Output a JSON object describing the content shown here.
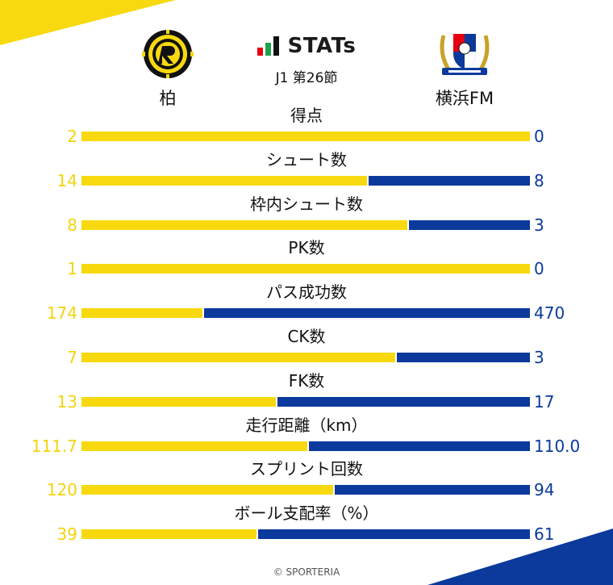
{
  "header": {
    "title": "STATs",
    "subtitle": "J1 第26節",
    "home_team": "柏",
    "away_team": "横浜FM",
    "home_logo_icon": "kashiwa-reysol-crest-icon",
    "away_logo_icon": "yokohama-f-marinos-crest-icon"
  },
  "colors": {
    "home": "#f8d90f",
    "home_text": "#f3d40d",
    "away": "#0b3a9c"
  },
  "chart_data": {
    "type": "bar",
    "orientation": "horizontal-stacked-comparison",
    "categories": [
      "得点",
      "シュート数",
      "枠内シュート数",
      "PK数",
      "パス成功数",
      "CK数",
      "FK数",
      "走行距離（km）",
      "スプリント回数",
      "ボール支配率（%）"
    ],
    "home_labels": [
      "2",
      "14",
      "8",
      "1",
      "174",
      "7",
      "13",
      "111.7",
      "120",
      "39"
    ],
    "away_labels": [
      "0",
      "8",
      "3",
      "0",
      "470",
      "3",
      "17",
      "110.0",
      "94",
      "61"
    ],
    "series": [
      {
        "name": "柏",
        "values": [
          2,
          14,
          8,
          1,
          174,
          7,
          13,
          111.7,
          120,
          39
        ]
      },
      {
        "name": "横浜FM",
        "values": [
          0,
          8,
          3,
          0,
          470,
          3,
          17,
          110.0,
          94,
          61
        ]
      }
    ]
  },
  "footer": {
    "credit": "© SPORTERIA"
  }
}
